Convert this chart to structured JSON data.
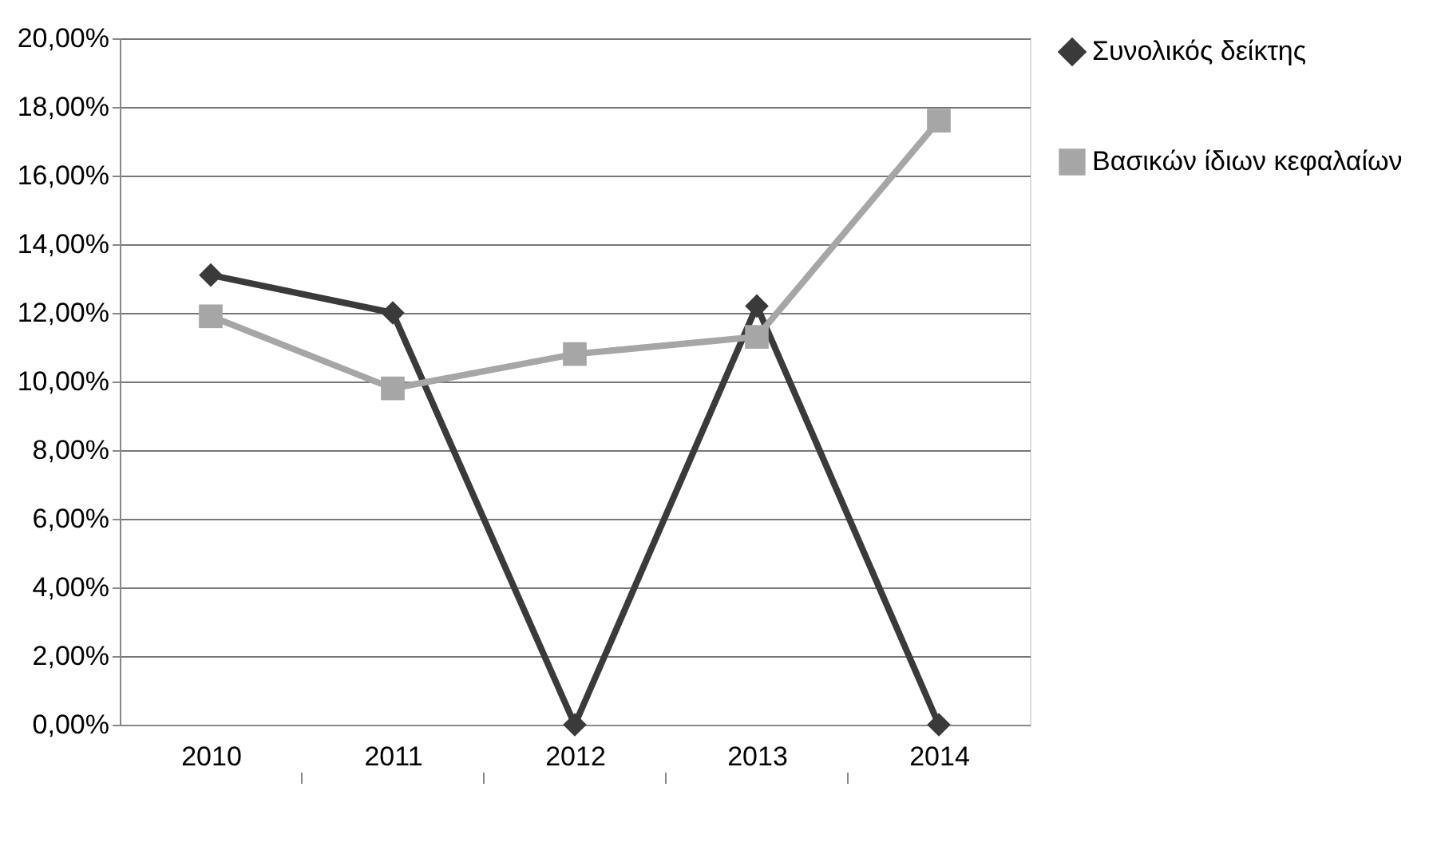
{
  "chart_data": {
    "type": "line",
    "categories": [
      "2010",
      "2011",
      "2012",
      "2013",
      "2014"
    ],
    "series": [
      {
        "name": "Συνολικός δείκτης",
        "color": "#3a3a3a",
        "marker": "diamond",
        "values": [
          13.1,
          12.0,
          0,
          12.2,
          0
        ]
      },
      {
        "name": "Βασικών ίδιων κεφαλαίων",
        "color": "#a6a6a6",
        "marker": "square",
        "values": [
          11.9,
          9.8,
          10.8,
          11.3,
          17.6
        ]
      }
    ],
    "ylim": [
      0,
      20
    ],
    "yticks": [
      {
        "value": 0,
        "label": "0,00%"
      },
      {
        "value": 2,
        "label": "2,00%"
      },
      {
        "value": 4,
        "label": "4,00%"
      },
      {
        "value": 6,
        "label": "6,00%"
      },
      {
        "value": 8,
        "label": "8,00%"
      },
      {
        "value": 10,
        "label": "10,00%"
      },
      {
        "value": 12,
        "label": "12,00%"
      },
      {
        "value": 14,
        "label": "14,00%"
      },
      {
        "value": 16,
        "label": "16,00%"
      },
      {
        "value": 18,
        "label": "18,00%"
      },
      {
        "value": 20,
        "label": "20,00%"
      }
    ],
    "grid": "y",
    "legend": "right",
    "line_style": "solid"
  }
}
